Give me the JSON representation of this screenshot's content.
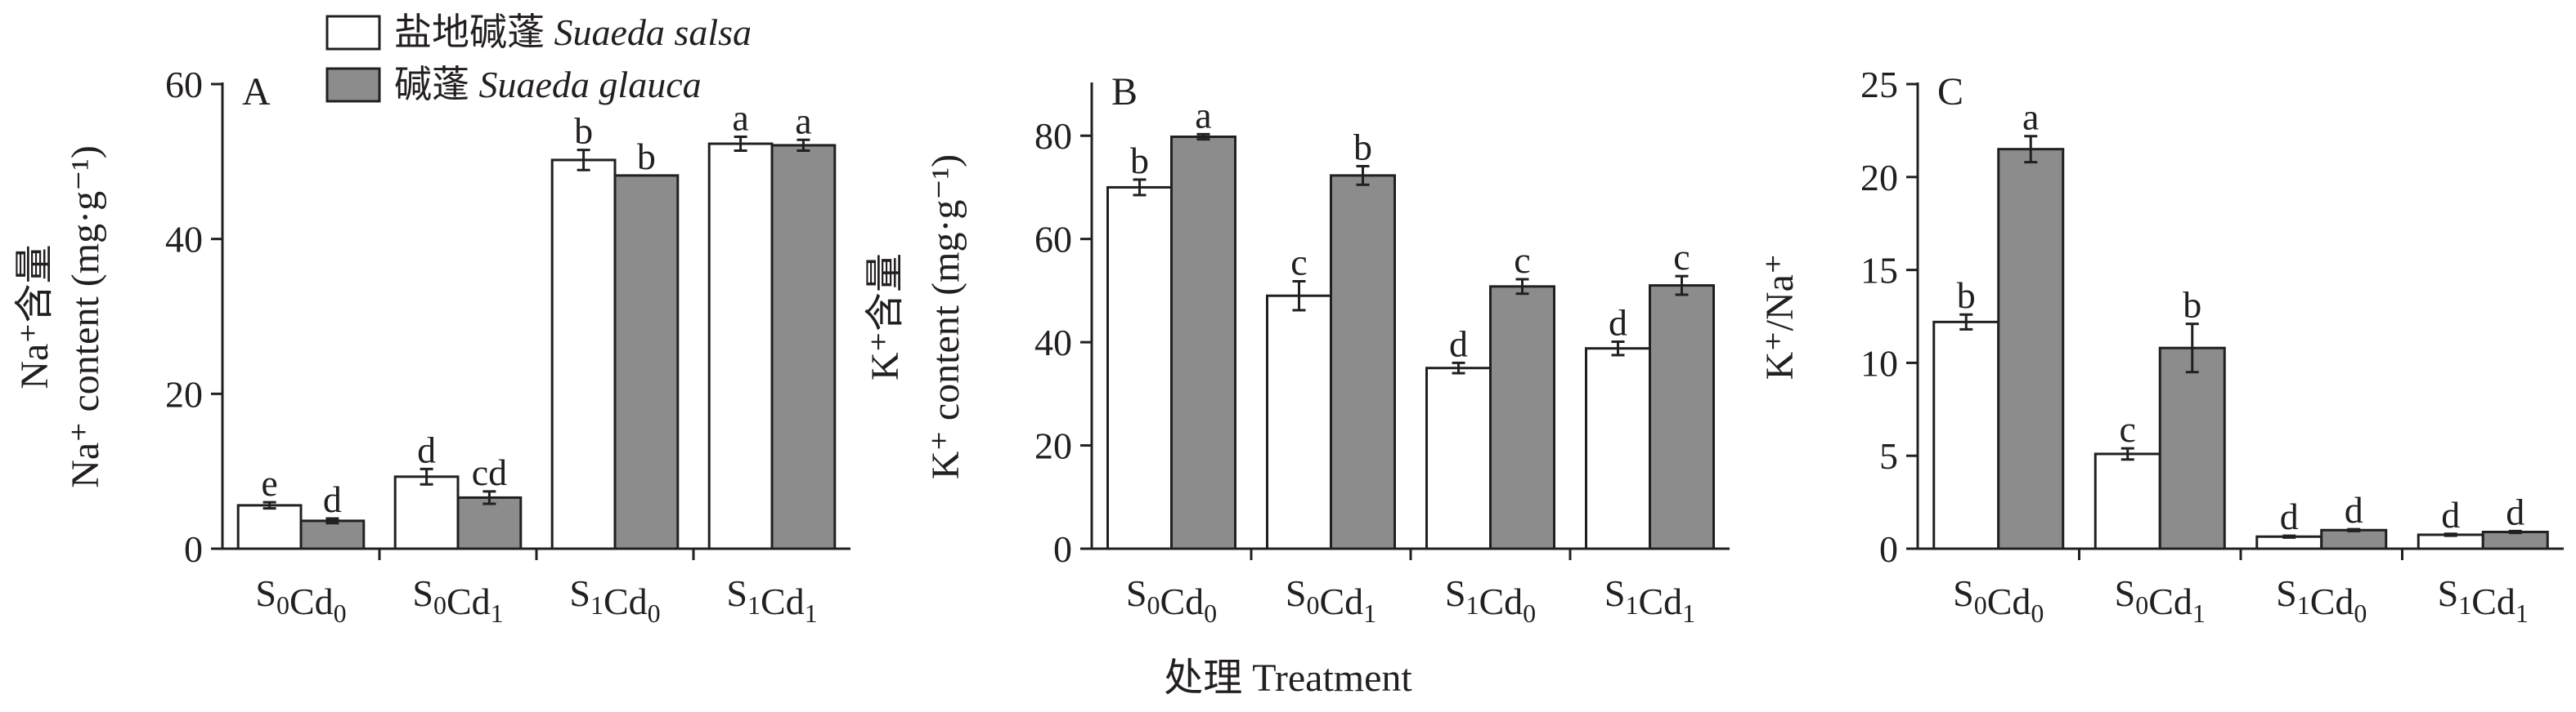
{
  "legend": {
    "items": [
      {
        "label": "盐地碱蓬 ",
        "italic": "Suaeda salsa",
        "color": "#ffffff"
      },
      {
        "label": "碱蓬 ",
        "italic": "Suaeda glauca",
        "color": "#8c8c8c"
      }
    ]
  },
  "figure": {
    "xlabel": "处理 Treatment"
  },
  "chart_data": [
    {
      "type": "bar",
      "panel": "A",
      "ylabel_cn": "Na⁺含量",
      "ylabel_en": "Na⁺ content (mg·g⁻¹)",
      "categories": [
        "S₀Cd₀",
        "S₀Cd₁",
        "S₁Cd₀",
        "S₁Cd₁"
      ],
      "ylim": [
        0,
        60
      ],
      "yticks": [
        0,
        20,
        40,
        60
      ],
      "series": [
        {
          "name": "盐地碱蓬 Suaeda salsa",
          "values": [
            5.6,
            9.3,
            50.2,
            52.3
          ],
          "errors": [
            0.4,
            1.0,
            1.3,
            0.9
          ],
          "letters": [
            "e",
            "d",
            "b",
            "a"
          ],
          "color": "#ffffff"
        },
        {
          "name": "碱蓬 Suaeda glauca",
          "values": [
            3.6,
            6.6,
            48.2,
            52.1
          ],
          "errors": [
            0.3,
            0.8,
            0.0,
            0.7
          ],
          "letters": [
            "d",
            "cd",
            "b",
            "a"
          ],
          "color": "#8c8c8c"
        }
      ]
    },
    {
      "type": "bar",
      "panel": "B",
      "ylabel_cn": "K⁺含量",
      "ylabel_en": "K⁺ content (mg·g⁻¹)",
      "categories": [
        "S₀Cd₀",
        "S₀Cd₁",
        "S₁Cd₀",
        "S₁Cd₁"
      ],
      "ylim": [
        0,
        90
      ],
      "yticks": [
        0,
        20,
        40,
        60,
        80
      ],
      "series": [
        {
          "name": "盐地碱蓬 Suaeda salsa",
          "values": [
            70.0,
            49.0,
            35.0,
            38.8
          ],
          "errors": [
            1.5,
            2.8,
            1.0,
            1.3
          ],
          "letters": [
            "b",
            "c",
            "d",
            "d"
          ],
          "color": "#ffffff"
        },
        {
          "name": "碱蓬 Suaeda glauca",
          "values": [
            79.8,
            72.3,
            50.8,
            51.0
          ],
          "errors": [
            0.5,
            1.8,
            1.4,
            1.8
          ],
          "letters": [
            "a",
            "b",
            "c",
            "c"
          ],
          "color": "#8c8c8c"
        }
      ]
    },
    {
      "type": "bar",
      "panel": "C",
      "ylabel_cn": "",
      "ylabel_en": "K⁺/Na⁺",
      "categories": [
        "S₀Cd₀",
        "S₀Cd₁",
        "S₁Cd₀",
        "S₁Cd₁"
      ],
      "ylim": [
        0,
        25
      ],
      "yticks": [
        0,
        5,
        10,
        15,
        20,
        25
      ],
      "series": [
        {
          "name": "盐地碱蓬 Suaeda salsa",
          "values": [
            12.2,
            5.1,
            0.65,
            0.75
          ],
          "errors": [
            0.4,
            0.3,
            0.05,
            0.05
          ],
          "letters": [
            "b",
            "c",
            "d",
            "d"
          ],
          "color": "#ffffff"
        },
        {
          "name": "碱蓬 Suaeda glauca",
          "values": [
            21.5,
            10.8,
            1.0,
            0.9
          ],
          "errors": [
            0.7,
            1.3,
            0.05,
            0.05
          ],
          "letters": [
            "a",
            "b",
            "d",
            "d"
          ],
          "color": "#8c8c8c"
        }
      ]
    }
  ]
}
